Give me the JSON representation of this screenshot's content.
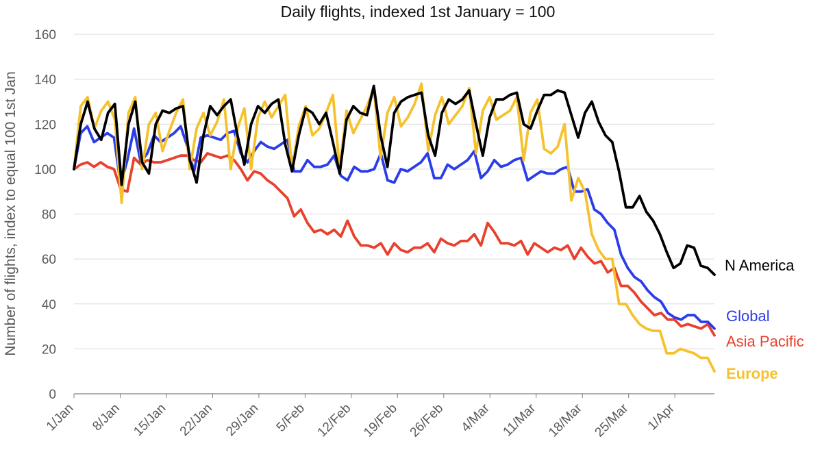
{
  "chart_data": {
    "type": "line",
    "title": "Daily flights, indexed 1st January = 100",
    "xlabel": "",
    "ylabel": "Number of flights, index to equal 100 1st Jan",
    "ylim": [
      0,
      160
    ],
    "y_ticks": [
      0,
      20,
      40,
      60,
      80,
      100,
      120,
      140,
      160
    ],
    "x_range_days": [
      0,
      97
    ],
    "x_tick_labels": [
      "1/Jan",
      "8/Jan",
      "15/Jan",
      "22/Jan",
      "29/Jan",
      "5/Feb",
      "12/Feb",
      "19/Feb",
      "26/Feb",
      "4/Mar",
      "11/Mar",
      "18/Mar",
      "25/Mar",
      "1/Apr"
    ],
    "x_tick_days": [
      0,
      7,
      14,
      21,
      28,
      35,
      42,
      49,
      56,
      63,
      70,
      77,
      84,
      91
    ],
    "x_start_date": "2020-01-01",
    "grid": "horizontal",
    "legend": "right-end labels",
    "series": [
      {
        "name": "Asia Pacific",
        "color": "#e8412e",
        "values": [
          100,
          102,
          103,
          101,
          103,
          101,
          100,
          91,
          90,
          105,
          102,
          104,
          103,
          103,
          104,
          105,
          106,
          106,
          104,
          103,
          107,
          106,
          105,
          106,
          104,
          100,
          95,
          99,
          98,
          95,
          93,
          90,
          87,
          79,
          82,
          76,
          72,
          73,
          71,
          73,
          70,
          77,
          70,
          66,
          66,
          65,
          67,
          62,
          67,
          64,
          63,
          65,
          65,
          67,
          63,
          69,
          67,
          66,
          68,
          68,
          71,
          66,
          76,
          72,
          67,
          67,
          66,
          68,
          62,
          67,
          65,
          63,
          65,
          64,
          66,
          60,
          65,
          61,
          58,
          59,
          54,
          56,
          48,
          48,
          45,
          41,
          38,
          35,
          36,
          33,
          33,
          30,
          31,
          30,
          29,
          31,
          26
        ]
      },
      {
        "name": "Global",
        "color": "#2b3de8",
        "values": [
          100,
          116,
          119,
          112,
          114,
          116,
          114,
          93,
          104,
          118,
          103,
          107,
          115,
          112,
          114,
          116,
          119,
          110,
          99,
          114,
          115,
          114,
          113,
          116,
          117,
          107,
          103,
          108,
          112,
          110,
          109,
          111,
          113,
          99,
          99,
          104,
          101,
          101,
          102,
          106,
          97,
          95,
          101,
          99,
          99,
          100,
          107,
          95,
          94,
          100,
          99,
          101,
          103,
          107,
          96,
          96,
          102,
          100,
          102,
          104,
          108,
          96,
          99,
          104,
          101,
          102,
          104,
          105,
          95,
          97,
          99,
          98,
          98,
          100,
          101,
          90,
          90,
          91,
          82,
          80,
          76,
          73,
          62,
          56,
          52,
          50,
          46,
          43,
          41,
          36,
          34,
          33,
          35,
          35,
          32,
          32,
          29
        ]
      },
      {
        "name": "Europe",
        "color": "#f5c22e",
        "values": [
          100,
          128,
          132,
          118,
          126,
          130,
          122,
          85,
          125,
          132,
          100,
          120,
          125,
          108,
          117,
          125,
          131,
          100,
          118,
          125,
          115,
          121,
          131,
          100,
          118,
          127,
          100,
          123,
          130,
          123,
          128,
          133,
          100,
          119,
          128,
          115,
          118,
          125,
          133,
          100,
          126,
          116,
          122,
          128,
          136,
          105,
          125,
          132,
          119,
          123,
          129,
          138,
          108,
          124,
          132,
          120,
          124,
          128,
          136,
          107,
          126,
          132,
          122,
          124,
          126,
          132,
          104,
          125,
          131,
          109,
          107,
          110,
          120,
          86,
          96,
          90,
          71,
          64,
          60,
          60,
          40,
          40,
          35,
          31,
          29,
          28,
          28,
          18,
          18,
          20,
          19,
          18,
          16,
          16,
          10
        ]
      },
      {
        "name": "N America",
        "color": "#000000",
        "values": [
          100,
          120,
          130,
          118,
          113,
          125,
          129,
          93,
          120,
          130,
          103,
          98,
          120,
          126,
          125,
          127,
          128,
          104,
          94,
          115,
          128,
          124,
          128,
          131,
          115,
          102,
          120,
          128,
          125,
          129,
          131,
          111,
          99,
          115,
          127,
          125,
          120,
          125,
          112,
          98,
          122,
          128,
          125,
          124,
          137,
          115,
          101,
          125,
          130,
          132,
          133,
          134,
          115,
          106,
          125,
          131,
          129,
          131,
          135,
          120,
          106,
          123,
          131,
          131,
          133,
          134,
          120,
          118,
          126,
          133,
          133,
          135,
          134,
          124,
          114,
          125,
          130,
          121,
          115,
          112,
          99,
          83,
          83,
          88,
          81,
          77,
          71,
          63,
          56,
          58,
          66,
          65,
          57,
          56,
          53
        ]
      }
    ]
  }
}
